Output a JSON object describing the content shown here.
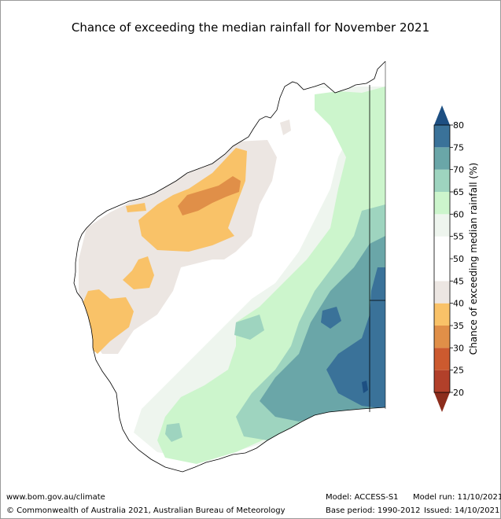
{
  "title": "Chance of exceeding the median rainfall for November 2021",
  "colorbar": {
    "label": "Chance of exceeding median rainfall (%)",
    "ticks": [
      "20",
      "25",
      "30",
      "35",
      "40",
      "45",
      "50",
      "55",
      "60",
      "65",
      "70",
      "75",
      "80"
    ],
    "bands": [
      {
        "from": 20,
        "to": 25,
        "color": "#b2402a"
      },
      {
        "from": 25,
        "to": 30,
        "color": "#cc5a2f"
      },
      {
        "from": 30,
        "to": 35,
        "color": "#e08f48"
      },
      {
        "from": 35,
        "to": 40,
        "color": "#f9c268"
      },
      {
        "from": 40,
        "to": 45,
        "color": "#ece6e2"
      },
      {
        "from": 45,
        "to": 50,
        "color": "#ffffff"
      },
      {
        "from": 50,
        "to": 55,
        "color": "#ffffff"
      },
      {
        "from": 55,
        "to": 60,
        "color": "#eef5ee"
      },
      {
        "from": 60,
        "to": 65,
        "color": "#ccf5cc"
      },
      {
        "from": 65,
        "to": 70,
        "color": "#9ed4bf"
      },
      {
        "from": 70,
        "to": 75,
        "color": "#6aa6a8"
      },
      {
        "from": 75,
        "to": 80,
        "color": "#3a7299"
      }
    ],
    "over_color": "#1d4f82",
    "under_color": "#8c2d1c"
  },
  "footer": {
    "url": "www.bom.gov.au/climate",
    "copyright": "© Commonwealth of Australia 2021, Australian Bureau of Meteorology",
    "model": "Model: ACCESS-S1",
    "base_period": "Base period: 1990-2012",
    "model_run": "Model run: 11/10/2021",
    "issued": "Issued: 14/10/2021"
  }
}
